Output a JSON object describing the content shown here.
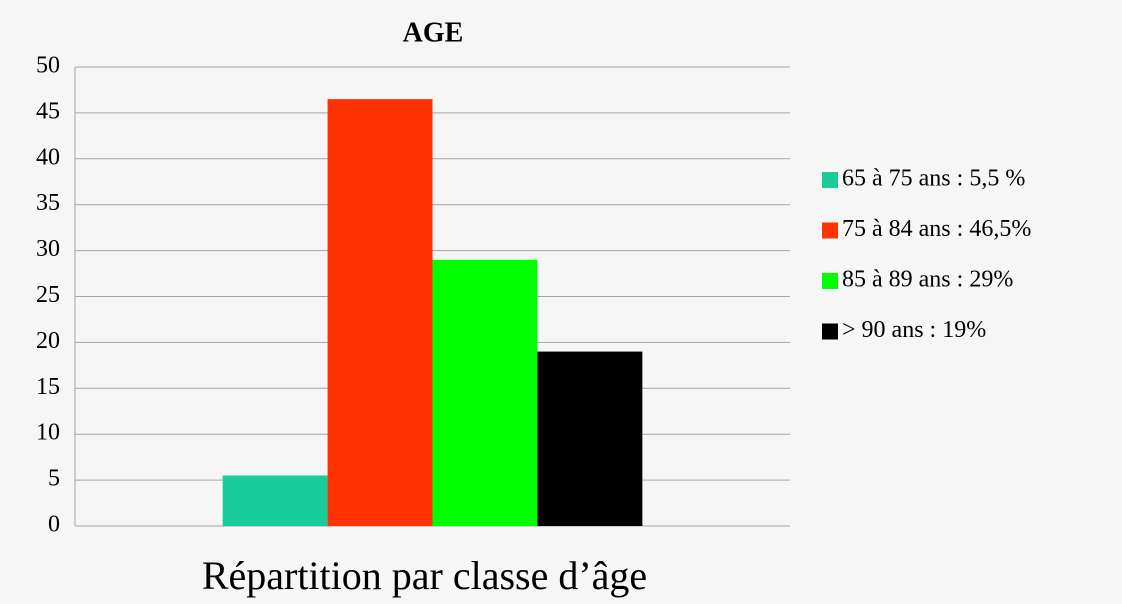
{
  "chart_data": {
    "type": "bar",
    "title": "AGE",
    "categories": [
      "Répartition par classe d’âge"
    ],
    "series": [
      {
        "name": "65 à 75 ans : 5,5 %",
        "color": "#1acc99",
        "values": [
          5.5
        ]
      },
      {
        "name": "75 à 84 ans : 46,5%",
        "color": "#ff3300",
        "values": [
          46.5
        ]
      },
      {
        "name": "85 à 89 ans : 29%",
        "color": "#00ff00",
        "values": [
          29
        ]
      },
      {
        "name": "> 90 ans : 19%",
        "color": "#000000",
        "values": [
          19
        ]
      }
    ],
    "ylim": [
      0,
      50
    ],
    "yticks": [
      0,
      5,
      10,
      15,
      20,
      25,
      30,
      35,
      40,
      45,
      50
    ],
    "grid": true,
    "legend": "right"
  }
}
